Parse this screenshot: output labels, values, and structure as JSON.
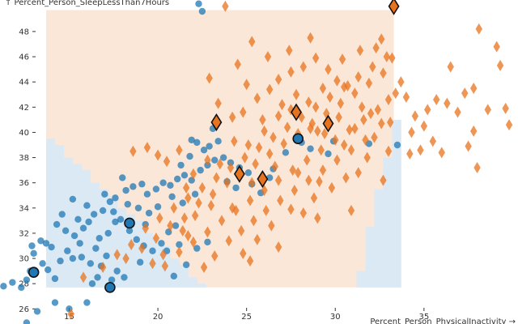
{
  "chart_data": {
    "type": "scatter",
    "xlabel": "Percent_Person_PhysicalInactivity →",
    "ylabel": "↑ Percent_Person_SleepLessThan7Hours",
    "xlim": [
      11.1,
      40.3
    ],
    "ylim": [
      24.8,
      50.5
    ],
    "x_ticks": [
      15,
      20,
      25,
      30,
      35
    ],
    "y_ticks": [
      26,
      28,
      30,
      32,
      34,
      36,
      38,
      40,
      42,
      44,
      46,
      48
    ],
    "grid": false,
    "legend": "none",
    "colors": {
      "class_a": "#1f77b4",
      "class_b": "#e8731e",
      "region_a": "#dbe9f5",
      "region_b": "#fbe7d8",
      "highlight_stroke": "#111111"
    },
    "decision_region": {
      "x_range": [
        13.7,
        33.3
      ],
      "y_range": [
        27.7,
        49.7
      ],
      "boundary_at_left_edge_y": 40.1,
      "class_b_lower_x_at_bottom": 22.9,
      "right_class_a_start_x": 31.3,
      "right_class_a_top_y": 40.4
    },
    "series": [
      {
        "name": "",
        "marker": "circle",
        "points": [
          [
            11.3,
            27.8
          ],
          [
            11.8,
            28.1
          ],
          [
            12.3,
            27.7
          ],
          [
            12.6,
            28.3
          ],
          [
            12.8,
            29.0
          ],
          [
            13.0,
            30.4
          ],
          [
            12.9,
            31.0
          ],
          [
            13.4,
            31.4
          ],
          [
            13.7,
            31.2
          ],
          [
            14.0,
            30.9
          ],
          [
            13.5,
            29.6
          ],
          [
            13.8,
            29.1
          ],
          [
            14.2,
            28.4
          ],
          [
            14.5,
            29.8
          ],
          [
            14.9,
            30.6
          ],
          [
            15.2,
            30.0
          ],
          [
            15.7,
            30.1
          ],
          [
            16.2,
            29.6
          ],
          [
            16.8,
            29.4
          ],
          [
            17.1,
            30.2
          ],
          [
            16.5,
            30.8
          ],
          [
            15.6,
            31.2
          ],
          [
            15.3,
            31.8
          ],
          [
            14.8,
            32.2
          ],
          [
            15.8,
            32.4
          ],
          [
            16.1,
            32.9
          ],
          [
            16.4,
            33.5
          ],
          [
            16.9,
            33.8
          ],
          [
            17.3,
            34.5
          ],
          [
            17.0,
            35.1
          ],
          [
            17.6,
            34.8
          ],
          [
            18.2,
            35.4
          ],
          [
            18.6,
            35.7
          ],
          [
            19.1,
            35.9
          ],
          [
            19.4,
            35.1
          ],
          [
            19.9,
            35.5
          ],
          [
            20.3,
            36.0
          ],
          [
            20.7,
            35.8
          ],
          [
            21.1,
            36.3
          ],
          [
            21.5,
            36.6
          ],
          [
            21.9,
            36.2
          ],
          [
            22.4,
            37.0
          ],
          [
            22.8,
            37.4
          ],
          [
            23.2,
            37.8
          ],
          [
            23.7,
            38.0
          ],
          [
            24.1,
            37.6
          ],
          [
            21.3,
            37.4
          ],
          [
            21.8,
            38.1
          ],
          [
            22.6,
            38.6
          ],
          [
            22.2,
            39.2
          ],
          [
            21.9,
            39.4
          ],
          [
            22.9,
            38.9
          ],
          [
            23.4,
            39.3
          ],
          [
            24.6,
            37.2
          ],
          [
            25.1,
            36.8
          ],
          [
            25.3,
            35.9
          ],
          [
            26.5,
            37.1
          ],
          [
            27.2,
            38.4
          ],
          [
            28.1,
            39.2
          ],
          [
            28.6,
            38.7
          ],
          [
            29.6,
            38.3
          ],
          [
            29.9,
            39.3
          ],
          [
            23.1,
            40.3
          ],
          [
            17.5,
            33.7
          ],
          [
            17.9,
            33.1
          ],
          [
            18.4,
            32.2
          ],
          [
            18.8,
            31.5
          ],
          [
            19.2,
            31.0
          ],
          [
            19.7,
            30.6
          ],
          [
            20.2,
            31.2
          ],
          [
            20.6,
            32.1
          ],
          [
            21.0,
            32.6
          ],
          [
            16.7,
            31.6
          ],
          [
            17.2,
            32.0
          ],
          [
            15.5,
            33.1
          ],
          [
            14.6,
            33.5
          ],
          [
            14.3,
            32.7
          ],
          [
            18.0,
            36.4
          ],
          [
            18.3,
            34.3
          ],
          [
            19.5,
            33.6
          ],
          [
            20.0,
            34.1
          ],
          [
            21.4,
            34.4
          ],
          [
            20.8,
            34.9
          ],
          [
            22.1,
            35.1
          ],
          [
            23.9,
            36.1
          ],
          [
            24.4,
            35.6
          ],
          [
            25.8,
            35.2
          ],
          [
            26.3,
            36.4
          ],
          [
            19.3,
            32.7
          ],
          [
            17.7,
            29.0
          ],
          [
            17.4,
            28.3
          ],
          [
            16.6,
            28.5
          ],
          [
            16.3,
            28.0
          ],
          [
            18.1,
            28.5
          ],
          [
            19.0,
            29.7
          ],
          [
            20.5,
            30.6
          ],
          [
            21.2,
            31.1
          ],
          [
            22.2,
            30.8
          ],
          [
            22.8,
            31.3
          ],
          [
            21.6,
            29.5
          ],
          [
            20.9,
            28.6
          ],
          [
            12.6,
            24.9
          ],
          [
            13.2,
            25.8
          ],
          [
            14.2,
            26.5
          ],
          [
            15.0,
            26.0
          ],
          [
            16.0,
            26.5
          ],
          [
            22.3,
            50.2
          ],
          [
            22.5,
            49.6
          ],
          [
            31.9,
            39.1
          ],
          [
            33.5,
            39.0
          ],
          [
            17.6,
            32.9
          ],
          [
            16.0,
            34.2
          ],
          [
            15.2,
            34.7
          ],
          [
            18.9,
            34.0
          ]
        ]
      },
      {
        "name": "",
        "marker": "diamond",
        "points": [
          [
            15.1,
            25.6
          ],
          [
            15.8,
            28.5
          ],
          [
            16.9,
            29.3
          ],
          [
            17.7,
            30.3
          ],
          [
            18.5,
            31.1
          ],
          [
            19.3,
            32.4
          ],
          [
            20.1,
            33.2
          ],
          [
            20.9,
            34.0
          ],
          [
            21.7,
            34.8
          ],
          [
            22.5,
            35.6
          ],
          [
            23.3,
            36.4
          ],
          [
            24.1,
            37.2
          ],
          [
            24.9,
            38.0
          ],
          [
            25.7,
            38.8
          ],
          [
            26.5,
            39.6
          ],
          [
            27.3,
            40.4
          ],
          [
            28.1,
            41.2
          ],
          [
            28.9,
            42.0
          ],
          [
            29.7,
            42.8
          ],
          [
            30.5,
            43.6
          ],
          [
            31.3,
            44.4
          ],
          [
            32.1,
            45.2
          ],
          [
            32.9,
            46.0
          ],
          [
            18.2,
            30.0
          ],
          [
            19.1,
            30.8
          ],
          [
            19.9,
            31.6
          ],
          [
            20.7,
            32.6
          ],
          [
            21.5,
            33.2
          ],
          [
            22.3,
            34.4
          ],
          [
            23.1,
            35.1
          ],
          [
            23.9,
            36.0
          ],
          [
            24.7,
            36.7
          ],
          [
            25.5,
            37.5
          ],
          [
            26.3,
            38.3
          ],
          [
            27.1,
            39.1
          ],
          [
            27.9,
            39.9
          ],
          [
            28.7,
            40.7
          ],
          [
            29.5,
            41.5
          ],
          [
            30.3,
            42.3
          ],
          [
            31.1,
            43.1
          ],
          [
            31.9,
            43.9
          ],
          [
            32.7,
            44.7
          ],
          [
            33.2,
            45.9
          ],
          [
            20.4,
            29.4
          ],
          [
            21.2,
            30.5
          ],
          [
            22.0,
            31.3
          ],
          [
            22.8,
            32.1
          ],
          [
            23.6,
            33.0
          ],
          [
            24.4,
            33.8
          ],
          [
            25.2,
            34.6
          ],
          [
            26.0,
            35.4
          ],
          [
            26.8,
            36.2
          ],
          [
            27.6,
            37.0
          ],
          [
            28.4,
            37.8
          ],
          [
            29.2,
            38.6
          ],
          [
            30.0,
            39.4
          ],
          [
            30.8,
            40.2
          ],
          [
            31.6,
            41.0
          ],
          [
            32.4,
            41.8
          ],
          [
            33.0,
            42.6
          ],
          [
            23.4,
            42.3
          ],
          [
            24.2,
            41.2
          ],
          [
            24.8,
            41.6
          ],
          [
            25.6,
            42.7
          ],
          [
            26.3,
            43.4
          ],
          [
            26.8,
            44.2
          ],
          [
            27.5,
            44.8
          ],
          [
            28.2,
            45.2
          ],
          [
            28.9,
            45.9
          ],
          [
            29.6,
            45.0
          ],
          [
            30.1,
            44.1
          ],
          [
            30.7,
            43.7
          ],
          [
            31.5,
            42.0
          ],
          [
            32.0,
            41.5
          ],
          [
            32.6,
            40.7
          ],
          [
            25.0,
            43.8
          ],
          [
            25.9,
            41.0
          ],
          [
            27.0,
            42.2
          ],
          [
            27.8,
            43.0
          ],
          [
            28.5,
            42.4
          ],
          [
            29.3,
            43.5
          ],
          [
            30.4,
            45.8
          ],
          [
            31.4,
            46.5
          ],
          [
            32.3,
            46.7
          ],
          [
            32.6,
            47.4
          ],
          [
            28.6,
            47.5
          ],
          [
            27.4,
            46.5
          ],
          [
            26.2,
            46.0
          ],
          [
            25.3,
            47.2
          ],
          [
            23.8,
            50.0
          ],
          [
            24.5,
            45.4
          ],
          [
            22.9,
            44.3
          ],
          [
            21.2,
            38.6
          ],
          [
            20.0,
            38.2
          ],
          [
            19.4,
            38.8
          ],
          [
            18.6,
            38.5
          ],
          [
            20.5,
            37.7
          ],
          [
            22.0,
            36.7
          ],
          [
            23.5,
            37.5
          ],
          [
            23.0,
            34.2
          ],
          [
            21.7,
            31.8
          ],
          [
            20.3,
            30.3
          ],
          [
            19.7,
            29.6
          ],
          [
            22.6,
            29.3
          ],
          [
            23.2,
            30.2
          ],
          [
            24.0,
            31.4
          ],
          [
            24.7,
            32.2
          ],
          [
            25.4,
            33.0
          ],
          [
            26.1,
            33.8
          ],
          [
            26.9,
            34.6
          ],
          [
            27.7,
            35.4
          ],
          [
            28.5,
            36.2
          ],
          [
            29.3,
            37.0
          ],
          [
            30.1,
            37.8
          ],
          [
            30.9,
            38.6
          ],
          [
            31.7,
            39.4
          ],
          [
            30.6,
            36.4
          ],
          [
            29.8,
            35.6
          ],
          [
            28.8,
            34.8
          ],
          [
            28.2,
            33.6
          ],
          [
            27.5,
            33.9
          ],
          [
            29.0,
            40.1
          ],
          [
            30.2,
            41.2
          ],
          [
            31.1,
            40.3
          ],
          [
            32.2,
            39.6
          ],
          [
            33.1,
            40.8
          ],
          [
            33.4,
            43.1
          ],
          [
            33.7,
            44.0
          ],
          [
            34.0,
            42.8
          ],
          [
            34.5,
            41.3
          ],
          [
            35.0,
            40.5
          ],
          [
            35.5,
            39.3
          ],
          [
            34.8,
            38.6
          ],
          [
            34.2,
            38.3
          ],
          [
            34.3,
            40.0
          ],
          [
            35.2,
            41.8
          ],
          [
            35.7,
            42.6
          ],
          [
            36.3,
            42.3
          ],
          [
            36.9,
            41.6
          ],
          [
            37.3,
            43.1
          ],
          [
            36.5,
            45.2
          ],
          [
            37.8,
            43.5
          ],
          [
            38.6,
            41.8
          ],
          [
            39.6,
            41.9
          ],
          [
            39.1,
            46.8
          ],
          [
            38.1,
            48.2
          ],
          [
            39.3,
            45.3
          ],
          [
            37.8,
            40.1
          ],
          [
            36.0,
            38.4
          ],
          [
            37.5,
            38.9
          ],
          [
            38.0,
            37.2
          ],
          [
            32.7,
            36.2
          ],
          [
            31.3,
            36.8
          ],
          [
            30.9,
            33.8
          ],
          [
            29.0,
            33.2
          ],
          [
            39.8,
            40.6
          ],
          [
            25.6,
            31.5
          ],
          [
            26.4,
            32.6
          ],
          [
            24.2,
            34.0
          ],
          [
            21.4,
            32.2
          ],
          [
            24.8,
            30.4
          ],
          [
            25.2,
            29.8
          ],
          [
            26.8,
            30.9
          ],
          [
            22.1,
            33.4
          ],
          [
            21.6,
            35.6
          ],
          [
            22.8,
            37.8
          ],
          [
            24.3,
            39.3
          ],
          [
            25.1,
            39.0
          ],
          [
            26.0,
            40.1
          ],
          [
            26.8,
            41.3
          ],
          [
            27.5,
            41.8
          ],
          [
            28.6,
            40.3
          ],
          [
            29.4,
            39.9
          ],
          [
            30.5,
            39.0
          ],
          [
            31.8,
            38.0
          ],
          [
            33.0,
            38.5
          ],
          [
            26.6,
            37.3
          ],
          [
            25.3,
            36.0
          ],
          [
            27.9,
            36.8
          ],
          [
            29.1,
            36.1
          ]
        ]
      }
    ],
    "highlighted_points": {
      "circle": [
        [
          13.0,
          28.9
        ],
        [
          17.3,
          27.7
        ],
        [
          18.4,
          32.8
        ],
        [
          27.9,
          39.5
        ]
      ],
      "diamond": [
        [
          33.3,
          50.0
        ],
        [
          23.3,
          40.8
        ],
        [
          24.6,
          36.7
        ],
        [
          25.9,
          36.3
        ],
        [
          27.8,
          41.6
        ],
        [
          29.6,
          40.7
        ]
      ]
    }
  }
}
